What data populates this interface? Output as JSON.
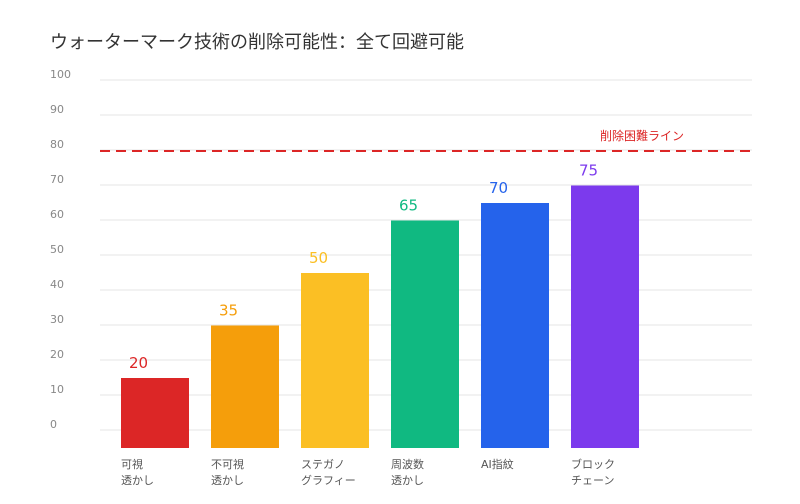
{
  "chart_data": {
    "type": "bar",
    "title": "ウォーターマーク技術の削除可能性：全て回避可能",
    "categories": [
      [
        "可視",
        "透かし"
      ],
      [
        "不可視",
        "透かし"
      ],
      [
        "ステガノ",
        "グラフィー"
      ],
      [
        "周波数",
        "透かし"
      ],
      [
        "AI指紋"
      ],
      [
        "ブロック",
        "チェーン"
      ]
    ],
    "values": [
      20,
      35,
      50,
      65,
      70,
      75
    ],
    "value_labels": [
      "20",
      "35",
      "50",
      "65",
      "70",
      "75"
    ],
    "colors": [
      "#dc2626",
      "#f59e0b",
      "#fbbf24",
      "#10b981",
      "#2563eb",
      "#7c3aed"
    ],
    "yticks": [
      "100",
      "90",
      "80",
      "70",
      "60",
      "50",
      "40",
      "30",
      "20",
      "10",
      "0"
    ],
    "ylim": [
      0,
      100
    ],
    "grid": true,
    "threshold": {
      "value": 80,
      "label": "削除困難ライン",
      "color": "#dc2626"
    }
  }
}
